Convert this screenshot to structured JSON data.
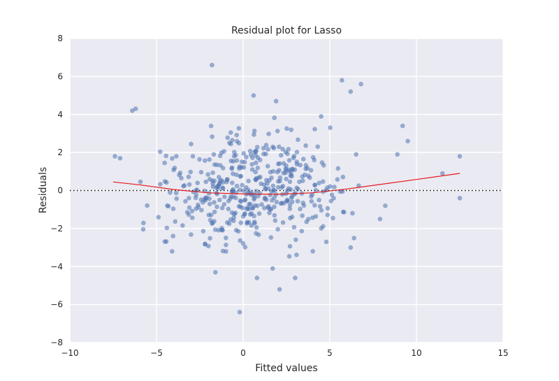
{
  "chart_data": {
    "type": "scatter",
    "title": "Residual plot for Lasso",
    "xlabel": "Fitted values",
    "ylabel": "Residuals",
    "xlim": [
      -10,
      15
    ],
    "ylim": [
      -8,
      8
    ],
    "xticks": [
      -10,
      -5,
      0,
      5,
      10,
      15
    ],
    "yticks": [
      -8,
      -6,
      -4,
      -2,
      0,
      2,
      4,
      6,
      8
    ],
    "xtick_labels": [
      "−10",
      "−5",
      "0",
      "5",
      "10",
      "15"
    ],
    "ytick_labels": [
      "−8",
      "−6",
      "−4",
      "−2",
      "0",
      "2",
      "4",
      "6",
      "8"
    ],
    "grid": true,
    "background": "#eaeaf2",
    "point_color": "#4c72b0",
    "trend_color": "#e41a1c",
    "reference_line": {
      "y": 0,
      "style": "dotted",
      "color": "#000000"
    },
    "outliers": [
      {
        "x": -1.8,
        "y": 6.6
      },
      {
        "x": 5.7,
        "y": 5.8
      },
      {
        "x": 6.8,
        "y": 5.6
      },
      {
        "x": 6.2,
        "y": 5.2
      },
      {
        "x": 0.6,
        "y": 5.0
      },
      {
        "x": 1.9,
        "y": 4.7
      },
      {
        "x": -6.4,
        "y": 4.2
      },
      {
        "x": -6.2,
        "y": 4.3
      },
      {
        "x": 4.5,
        "y": 3.9
      },
      {
        "x": 9.2,
        "y": 3.4
      },
      {
        "x": 9.5,
        "y": 2.6
      },
      {
        "x": 8.9,
        "y": 1.9
      },
      {
        "x": 11.5,
        "y": 0.9
      },
      {
        "x": 12.5,
        "y": 1.8
      },
      {
        "x": 12.5,
        "y": -0.4
      },
      {
        "x": 8.2,
        "y": -0.8
      },
      {
        "x": 7.9,
        "y": -1.5
      },
      {
        "x": -0.2,
        "y": -6.4
      },
      {
        "x": 2.1,
        "y": -5.2
      },
      {
        "x": 0.8,
        "y": -4.6
      },
      {
        "x": 3.0,
        "y": -4.6
      },
      {
        "x": -1.6,
        "y": -4.3
      },
      {
        "x": 1.7,
        "y": -4.1
      },
      {
        "x": -7.4,
        "y": 1.8
      },
      {
        "x": -7.1,
        "y": 1.7
      },
      {
        "x": -4.1,
        "y": -3.2
      },
      {
        "x": 6.4,
        "y": -2.5
      },
      {
        "x": 6.2,
        "y": -3.0
      },
      {
        "x": 4.8,
        "y": -2.7
      }
    ],
    "cluster": {
      "count": 440,
      "x_range": [
        -6.8,
        7.8
      ],
      "seed": 7
    },
    "trend": [
      {
        "x": -7.5,
        "y": 0.45
      },
      {
        "x": -6,
        "y": 0.3
      },
      {
        "x": -4,
        "y": 0.05
      },
      {
        "x": -2,
        "y": -0.12
      },
      {
        "x": 0,
        "y": -0.18
      },
      {
        "x": 2,
        "y": -0.2
      },
      {
        "x": 4,
        "y": -0.12
      },
      {
        "x": 6,
        "y": 0.08
      },
      {
        "x": 8,
        "y": 0.33
      },
      {
        "x": 10,
        "y": 0.58
      },
      {
        "x": 12.5,
        "y": 0.9
      }
    ]
  }
}
